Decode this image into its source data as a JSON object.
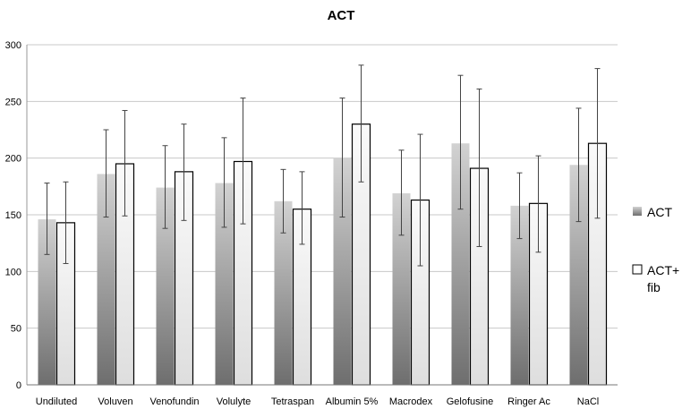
{
  "chart_data": {
    "type": "bar",
    "title": "ACT",
    "categories": [
      "Undiluted",
      "Voluven",
      "Venofundin",
      "Volulyte",
      "Tetraspan",
      "Albumin 5%",
      "Macrodex",
      "Gelofusine",
      "Ringer Ac",
      "NaCl"
    ],
    "ylim": [
      0,
      300
    ],
    "yticks": [
      0,
      50,
      100,
      150,
      200,
      250,
      300
    ],
    "grid": true,
    "legend_position": "right",
    "series": [
      {
        "name": "ACT",
        "style": "dark-gradient",
        "values": [
          146,
          186,
          174,
          178,
          162,
          200,
          169,
          213,
          158,
          194
        ],
        "error_low": [
          115,
          148,
          138,
          139,
          134,
          148,
          132,
          155,
          129,
          144
        ],
        "error_high": [
          178,
          225,
          211,
          218,
          190,
          253,
          207,
          273,
          187,
          244
        ]
      },
      {
        "name": "ACT+ fib",
        "legend_lines": [
          "ACT+",
          "fib"
        ],
        "style": "light-outlined",
        "values": [
          143,
          195,
          188,
          197,
          155,
          230,
          163,
          191,
          160,
          213
        ],
        "error_low": [
          107,
          149,
          145,
          142,
          124,
          179,
          105,
          122,
          117,
          147
        ],
        "error_high": [
          179,
          242,
          230,
          253,
          188,
          282,
          221,
          261,
          202,
          279
        ]
      }
    ]
  }
}
